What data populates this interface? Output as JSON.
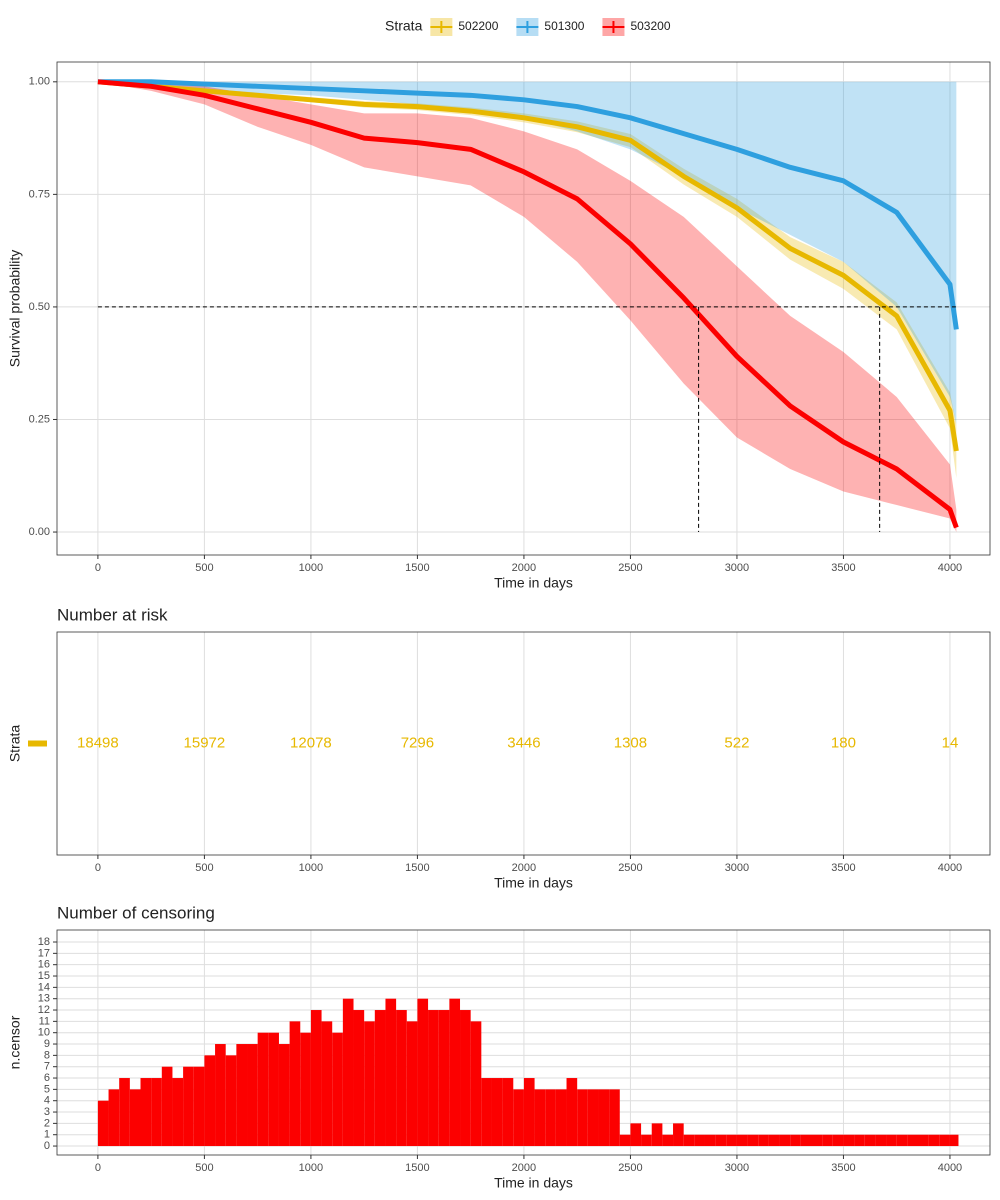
{
  "chart_data": [
    {
      "type": "survival",
      "legend_title": "Strata",
      "xlabel": "Time in days",
      "ylabel": "Survival probability",
      "xlim": [
        -192,
        4188
      ],
      "xticks": [
        0,
        500,
        1000,
        1500,
        2000,
        2500,
        3000,
        3500,
        4000
      ],
      "ylim": [
        -0.051,
        1.044
      ],
      "yticks": [
        {
          "value": 0,
          "label": "0.00"
        },
        0.25,
        {
          "value": 0.5,
          "label": "0.50"
        },
        0.75,
        {
          "value": 1,
          "label": "1.00"
        }
      ],
      "grid": true,
      "x": [
        0,
        250,
        500,
        750,
        1000,
        1250,
        1500,
        1750,
        2000,
        2250,
        2500,
        2750,
        3000,
        3250,
        3500,
        3750,
        4000,
        4030
      ],
      "series": [
        {
          "name": "502200",
          "color": "#E7B800",
          "values": [
            1,
            0.99,
            0.98,
            0.97,
            0.96,
            0.95,
            0.945,
            0.935,
            0.92,
            0.9,
            0.87,
            0.79,
            0.72,
            0.63,
            0.57,
            0.48,
            0.27,
            0.18
          ],
          "lower": [
            1,
            0.985,
            0.975,
            0.965,
            0.955,
            0.943,
            0.937,
            0.926,
            0.91,
            0.888,
            0.855,
            0.772,
            0.7,
            0.605,
            0.54,
            0.45,
            0.23,
            0.12
          ],
          "upper": [
            1,
            0.995,
            0.985,
            0.976,
            0.966,
            0.957,
            0.952,
            0.943,
            0.93,
            0.912,
            0.884,
            0.807,
            0.74,
            0.655,
            0.6,
            0.51,
            0.31,
            0.24
          ]
        },
        {
          "name": "501300",
          "color": "#2E9FDF",
          "values": [
            1,
            1,
            0.995,
            0.99,
            0.985,
            0.98,
            0.975,
            0.97,
            0.96,
            0.945,
            0.92,
            0.885,
            0.85,
            0.81,
            0.78,
            0.71,
            0.55,
            0.45
          ],
          "lower": [
            1,
            0.99,
            0.985,
            0.975,
            0.97,
            0.96,
            0.95,
            0.94,
            0.92,
            0.89,
            0.85,
            0.79,
            0.72,
            0.66,
            0.6,
            0.5,
            0.3,
            0.24
          ],
          "upper": [
            1,
            1,
            1,
            1,
            1,
            1,
            1,
            1,
            1,
            1,
            1,
            1,
            1,
            1,
            1,
            1,
            1,
            1
          ]
        },
        {
          "name": "503200",
          "color": "#FC0000",
          "values": [
            1,
            0.99,
            0.97,
            0.94,
            0.91,
            0.875,
            0.865,
            0.85,
            0.8,
            0.74,
            0.64,
            0.52,
            0.39,
            0.28,
            0.2,
            0.14,
            0.05,
            0.01
          ],
          "lower": [
            1,
            0.98,
            0.95,
            0.9,
            0.86,
            0.81,
            0.79,
            0.77,
            0.7,
            0.6,
            0.47,
            0.33,
            0.21,
            0.14,
            0.09,
            0.06,
            0.03,
            0
          ],
          "upper": [
            1,
            1,
            0.99,
            0.97,
            0.95,
            0.93,
            0.93,
            0.92,
            0.89,
            0.85,
            0.78,
            0.7,
            0.59,
            0.48,
            0.4,
            0.3,
            0.15,
            0.05
          ]
        }
      ],
      "median_lines": {
        "y": 0.5,
        "x": [
          2820,
          3670
        ]
      }
    },
    {
      "type": "risk_table",
      "title": "Number at risk",
      "xlabel": "Time in days",
      "ylabel": "Strata",
      "xlim": [
        -192,
        4188
      ],
      "xticks": [
        0,
        500,
        1000,
        1500,
        2000,
        2500,
        3000,
        3500,
        4000
      ],
      "grid": true,
      "color": "#E7B800",
      "x": [
        0,
        500,
        1000,
        1500,
        2000,
        2500,
        3000,
        3500,
        4000
      ],
      "values": [
        18498,
        15972,
        12078,
        7296,
        3446,
        1308,
        522,
        180,
        14
      ]
    },
    {
      "type": "histogram",
      "title": "Number of censoring",
      "xlabel": "Time in days",
      "ylabel": "n.censor",
      "xlim": [
        -192,
        4188
      ],
      "xticks": [
        0,
        500,
        1000,
        1500,
        2000,
        2500,
        3000,
        3500,
        4000
      ],
      "ylim": [
        -0.79,
        19.06
      ],
      "yticks": [
        0,
        1,
        2,
        3,
        4,
        5,
        6,
        7,
        8,
        9,
        10,
        11,
        12,
        13,
        14,
        15,
        16,
        17,
        18
      ],
      "grid": true,
      "color": "#FC0000",
      "bins": [
        0,
        50,
        100,
        150,
        200,
        250,
        300,
        350,
        400,
        450,
        500,
        550,
        600,
        650,
        700,
        750,
        800,
        850,
        900,
        950,
        1000,
        1050,
        1100,
        1150,
        1200,
        1250,
        1300,
        1350,
        1400,
        1450,
        1500,
        1550,
        1600,
        1650,
        1700,
        1750,
        1800,
        1850,
        1900,
        1950,
        2000,
        2050,
        2100,
        2150,
        2200,
        2250,
        2300,
        2350,
        2400,
        2450,
        2500,
        2550,
        2600,
        2650,
        2700,
        2750,
        2800,
        2850,
        2900,
        2950,
        3000,
        3050,
        3100,
        3150,
        3200,
        3250,
        3300,
        3350,
        3400,
        3450,
        3500,
        3550,
        3600,
        3650,
        3700,
        3750,
        3800,
        3850,
        3900,
        3950,
        4000,
        4040
      ],
      "values": [
        4,
        5,
        6,
        5,
        6,
        6,
        7,
        6,
        7,
        7,
        8,
        9,
        8,
        9,
        9,
        10,
        10,
        9,
        11,
        10,
        12,
        11,
        10,
        13,
        12,
        11,
        12,
        13,
        12,
        11,
        13,
        12,
        12,
        13,
        12,
        11,
        6,
        6,
        6,
        5,
        6,
        5,
        5,
        5,
        6,
        5,
        5,
        5,
        5,
        1,
        2,
        1,
        2,
        1,
        2,
        1,
        1,
        1,
        1,
        1,
        1,
        1,
        1,
        1,
        1,
        1,
        1,
        1,
        1,
        1,
        1,
        1,
        1,
        1,
        1,
        1,
        1,
        1,
        1,
        1,
        1
      ]
    }
  ]
}
